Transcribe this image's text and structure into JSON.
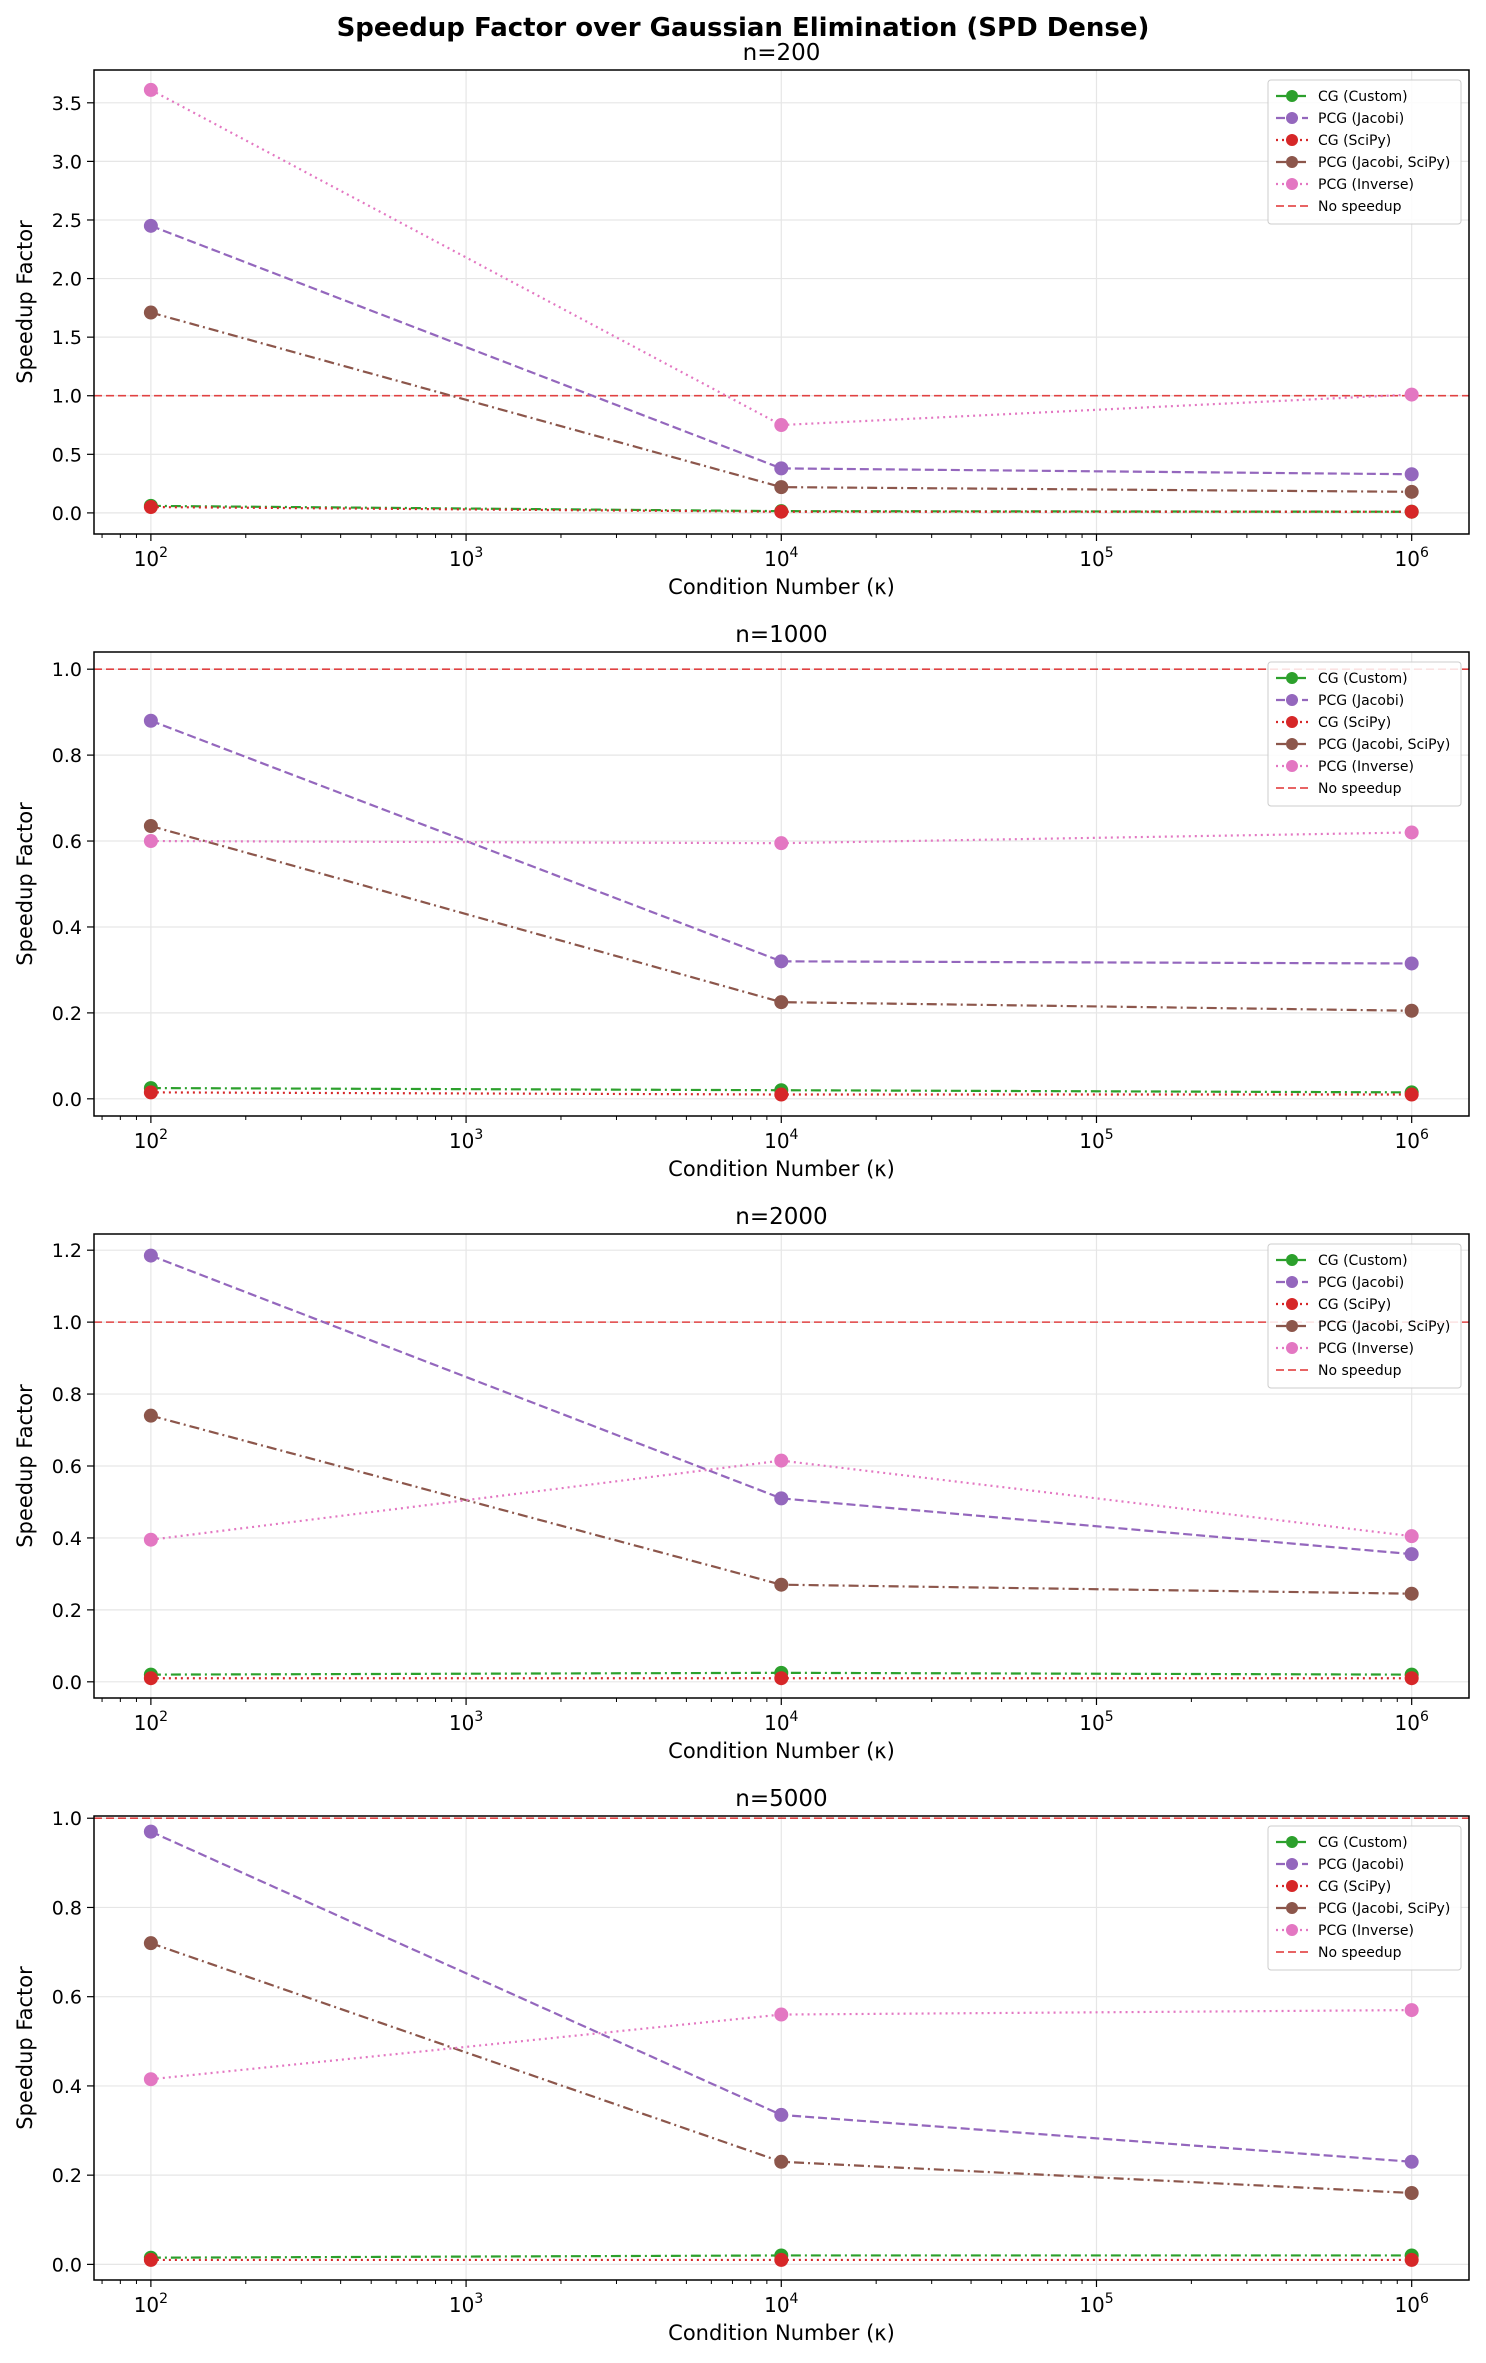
{
  "figure_title": "Speedup Factor over Gaussian Elimination (SPD Dense)",
  "legend_labels": [
    "CG (Custom)",
    "PCG (Jacobi)",
    "CG (SciPy)",
    "PCG (Jacobi, SciPy)",
    "PCG (Inverse)",
    "No speedup"
  ],
  "series_styles": [
    {
      "name": "CG (Custom)",
      "color": "#2ca02c",
      "dash": "dashdot"
    },
    {
      "name": "PCG (Jacobi)",
      "color": "#9467bd",
      "dash": "dashed"
    },
    {
      "name": "CG (SciPy)",
      "color": "#d62728",
      "dash": "dotted"
    },
    {
      "name": "PCG (Jacobi, SciPy)",
      "color": "#8c564b",
      "dash": "dashdot"
    },
    {
      "name": "PCG (Inverse)",
      "color": "#e377c2",
      "dash": "dotted"
    }
  ],
  "reference_line": {
    "label": "No speedup",
    "value": 1.0,
    "color": "#e03030"
  },
  "chart_data": [
    {
      "type": "line",
      "title": "n=200",
      "xlabel": "Condition Number (κ)",
      "ylabel": "Speedup Factor",
      "xscale": "log",
      "x": [
        100,
        10000,
        1000000
      ],
      "xticks": [
        2,
        3,
        4,
        5,
        6
      ],
      "ylim": [
        -0.18,
        3.78
      ],
      "yticks": [
        0.0,
        0.5,
        1.0,
        1.5,
        2.0,
        2.5,
        3.0,
        3.5
      ],
      "ytick_labels": [
        "0.0",
        "0.5",
        "1.0",
        "1.5",
        "2.0",
        "2.5",
        "3.0",
        "3.5"
      ],
      "legend_position": "upper right",
      "grid": true,
      "series": [
        {
          "name": "CG (Custom)",
          "values": [
            0.06,
            0.015,
            0.01
          ]
        },
        {
          "name": "PCG (Jacobi)",
          "values": [
            2.45,
            0.38,
            0.33
          ]
        },
        {
          "name": "CG (SciPy)",
          "values": [
            0.05,
            0.01,
            0.01
          ]
        },
        {
          "name": "PCG (Jacobi, SciPy)",
          "values": [
            1.71,
            0.22,
            0.18
          ]
        },
        {
          "name": "PCG (Inverse)",
          "values": [
            3.61,
            0.75,
            1.01
          ]
        }
      ]
    },
    {
      "type": "line",
      "title": "n=1000",
      "xlabel": "Condition Number (κ)",
      "ylabel": "Speedup Factor",
      "xscale": "log",
      "x": [
        100,
        10000,
        1000000
      ],
      "xticks": [
        2,
        3,
        4,
        5,
        6
      ],
      "ylim": [
        -0.04,
        1.04
      ],
      "yticks": [
        0.0,
        0.2,
        0.4,
        0.6,
        0.8,
        1.0
      ],
      "ytick_labels": [
        "0.0",
        "0.2",
        "0.4",
        "0.6",
        "0.8",
        "1.0"
      ],
      "legend_position": "upper right",
      "grid": true,
      "series": [
        {
          "name": "CG (Custom)",
          "values": [
            0.025,
            0.02,
            0.015
          ]
        },
        {
          "name": "PCG (Jacobi)",
          "values": [
            0.88,
            0.32,
            0.315
          ]
        },
        {
          "name": "CG (SciPy)",
          "values": [
            0.015,
            0.01,
            0.01
          ]
        },
        {
          "name": "PCG (Jacobi, SciPy)",
          "values": [
            0.635,
            0.225,
            0.205
          ]
        },
        {
          "name": "PCG (Inverse)",
          "values": [
            0.6,
            0.595,
            0.62
          ]
        }
      ]
    },
    {
      "type": "line",
      "title": "n=2000",
      "xlabel": "Condition Number (κ)",
      "ylabel": "Speedup Factor",
      "xscale": "log",
      "x": [
        100,
        10000,
        1000000
      ],
      "xticks": [
        2,
        3,
        4,
        5,
        6
      ],
      "ylim": [
        -0.045,
        1.245
      ],
      "yticks": [
        0.0,
        0.2,
        0.4,
        0.6,
        0.8,
        1.0,
        1.2
      ],
      "ytick_labels": [
        "0.0",
        "0.2",
        "0.4",
        "0.6",
        "0.8",
        "1.0",
        "1.2"
      ],
      "legend_position": "upper right",
      "grid": true,
      "series": [
        {
          "name": "CG (Custom)",
          "values": [
            0.02,
            0.025,
            0.02
          ]
        },
        {
          "name": "PCG (Jacobi)",
          "values": [
            1.185,
            0.51,
            0.355
          ]
        },
        {
          "name": "CG (SciPy)",
          "values": [
            0.01,
            0.01,
            0.01
          ]
        },
        {
          "name": "PCG (Jacobi, SciPy)",
          "values": [
            0.74,
            0.27,
            0.245
          ]
        },
        {
          "name": "PCG (Inverse)",
          "values": [
            0.395,
            0.615,
            0.405
          ]
        }
      ]
    },
    {
      "type": "line",
      "title": "n=5000",
      "xlabel": "Condition Number (κ)",
      "ylabel": "Speedup Factor",
      "xscale": "log",
      "x": [
        100,
        10000,
        1000000
      ],
      "xticks": [
        2,
        3,
        4,
        5,
        6
      ],
      "ylim": [
        -0.035,
        1.005
      ],
      "yticks": [
        0.0,
        0.2,
        0.4,
        0.6,
        0.8,
        1.0
      ],
      "ytick_labels": [
        "0.0",
        "0.2",
        "0.4",
        "0.6",
        "0.8",
        "1.0"
      ],
      "legend_position": "upper right",
      "grid": true,
      "series": [
        {
          "name": "CG (Custom)",
          "values": [
            0.015,
            0.02,
            0.02
          ]
        },
        {
          "name": "PCG (Jacobi)",
          "values": [
            0.97,
            0.335,
            0.23
          ]
        },
        {
          "name": "CG (SciPy)",
          "values": [
            0.01,
            0.01,
            0.01
          ]
        },
        {
          "name": "PCG (Jacobi, SciPy)",
          "values": [
            0.72,
            0.23,
            0.16
          ]
        },
        {
          "name": "PCG (Inverse)",
          "values": [
            0.415,
            0.56,
            0.57
          ]
        }
      ]
    }
  ]
}
